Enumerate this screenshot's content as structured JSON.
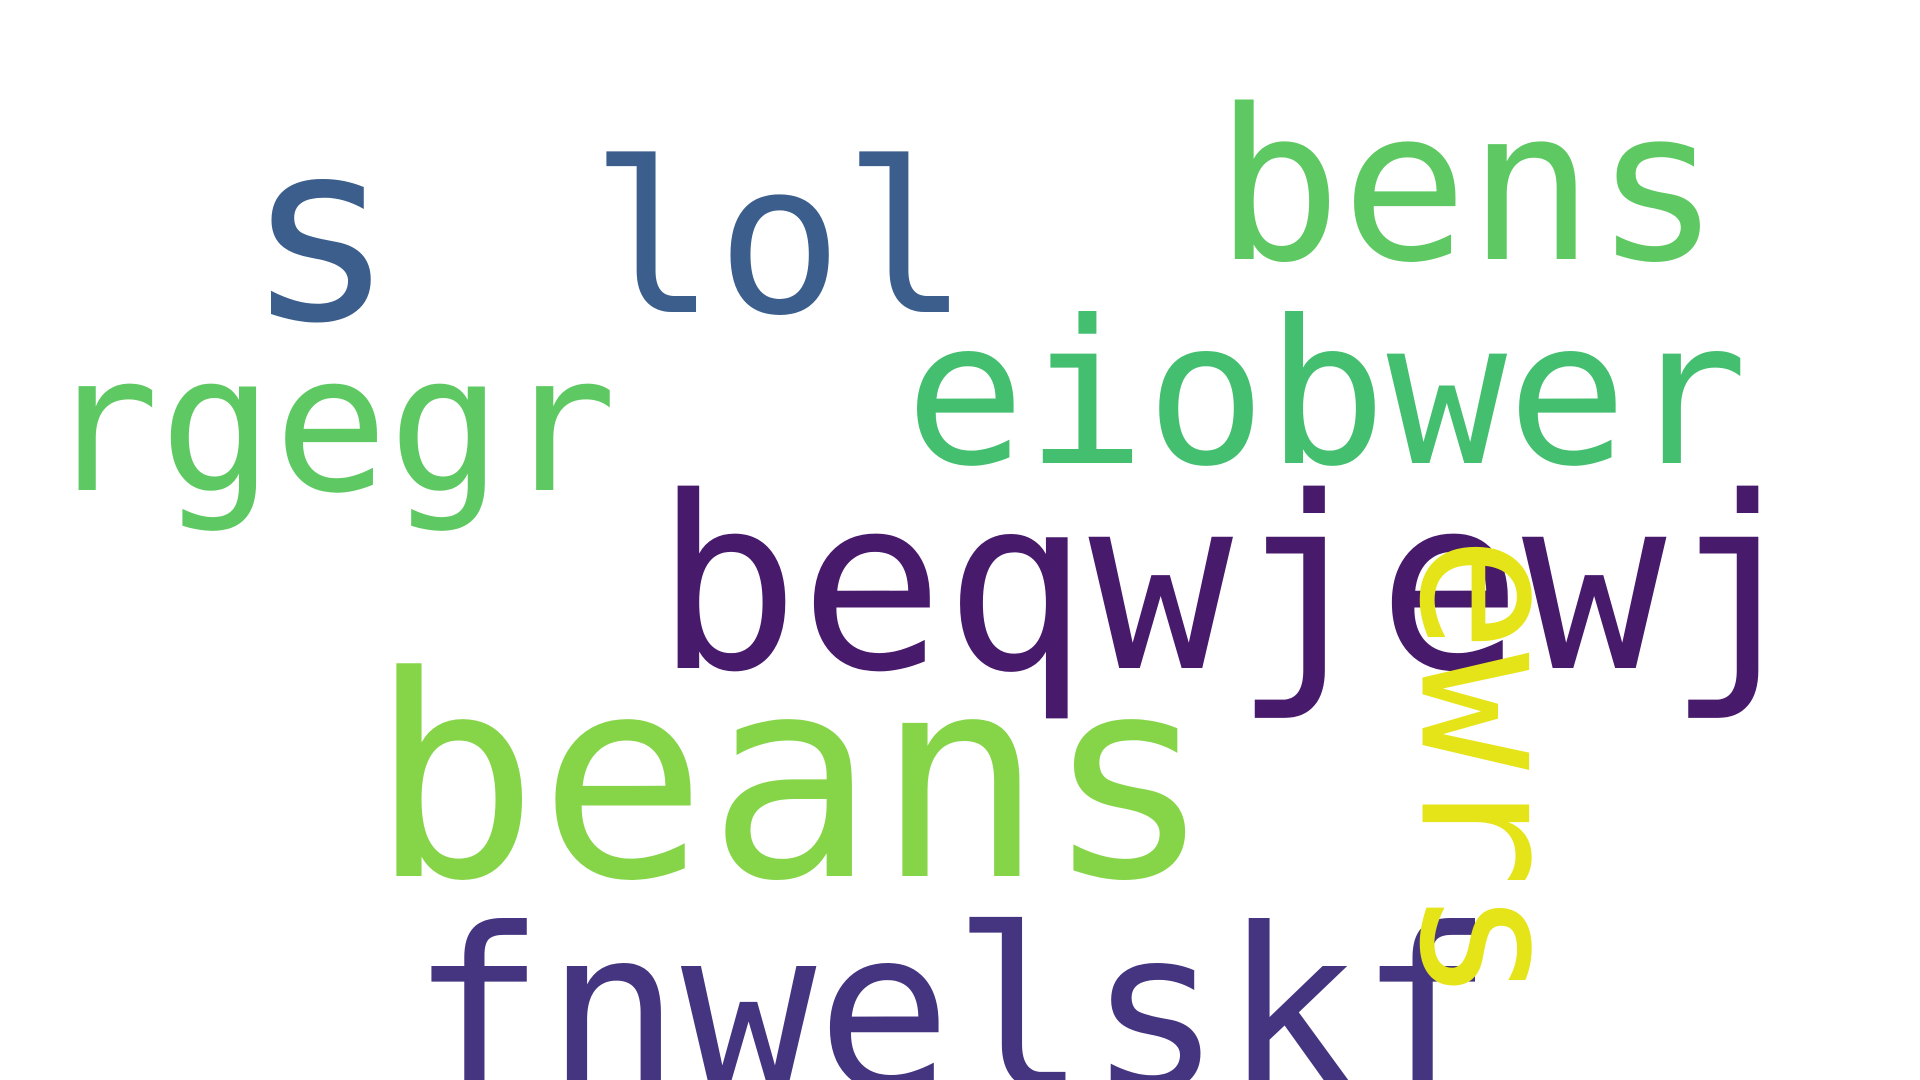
{
  "words": [
    {
      "id": "s",
      "text": "s",
      "color": "#3b5e8c"
    },
    {
      "id": "lol",
      "text": "lol",
      "color": "#3b5e8c"
    },
    {
      "id": "bens",
      "text": "bens",
      "color": "#5ec962"
    },
    {
      "id": "rgegr",
      "text": "rgegr",
      "color": "#5ec962"
    },
    {
      "id": "eiobwer",
      "text": "eiobwer",
      "color": "#44bf70"
    },
    {
      "id": "beqwjewj",
      "text": "beqwjewj",
      "color": "#481a6c"
    },
    {
      "id": "beans",
      "text": "beans",
      "color": "#86d549"
    },
    {
      "id": "fnwelskf",
      "text": "fnwelskf",
      "color": "#453581"
    },
    {
      "id": "ewrs",
      "text": "ewrs",
      "color": "#e5e419"
    }
  ]
}
